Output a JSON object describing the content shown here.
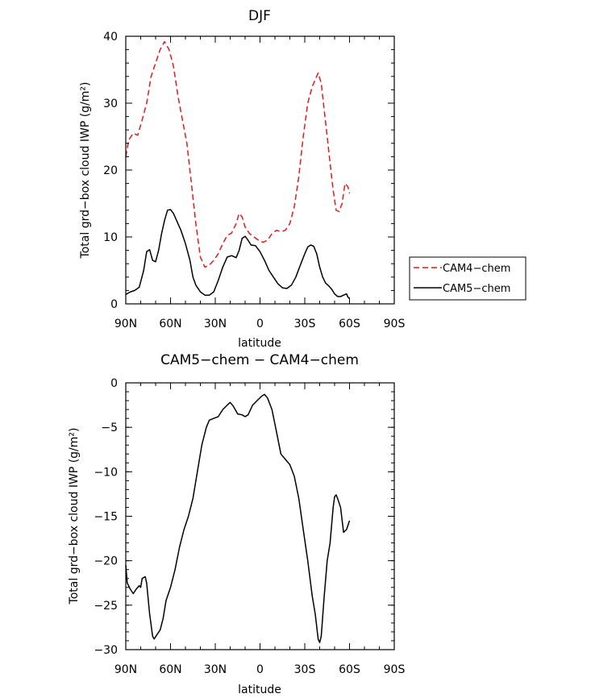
{
  "chart_data": [
    {
      "type": "line",
      "title": "DJF",
      "xlabel": "latitude",
      "ylabel": "Total grd−box cloud IWP (g/m²)",
      "xlim": [
        90,
        -90
      ],
      "ylim": [
        0,
        40
      ],
      "xticks": [
        90,
        60,
        30,
        0,
        -30,
        -60,
        -90
      ],
      "xtick_labels": [
        "90N",
        "60N",
        "30N",
        "0",
        "30S",
        "60S",
        "90S"
      ],
      "yticks": [
        0,
        10,
        20,
        30,
        40
      ],
      "ytick_labels": [
        "0",
        "10",
        "20",
        "30",
        "40"
      ],
      "legend_position": "right",
      "series": [
        {
          "name": "CAM4−chem",
          "color": "#e41a1c",
          "dash": "dashed",
          "points": [
            [
              90,
              22
            ],
            [
              88,
              24.5
            ],
            [
              85,
              25.5
            ],
            [
              82,
              25.2
            ],
            [
              79,
              27.5
            ],
            [
              76,
              30
            ],
            [
              73,
              34
            ],
            [
              70,
              36
            ],
            [
              67,
              38
            ],
            [
              64,
              39.2
            ],
            [
              61,
              38
            ],
            [
              58,
              35.5
            ],
            [
              55,
              31
            ],
            [
              52,
              27.5
            ],
            [
              49,
              24
            ],
            [
              46,
              18
            ],
            [
              43,
              12
            ],
            [
              40,
              7
            ],
            [
              37,
              5.5
            ],
            [
              34,
              5.8
            ],
            [
              31,
              6.5
            ],
            [
              28,
              7.5
            ],
            [
              25,
              9
            ],
            [
              22,
              10.2
            ],
            [
              19,
              10.6
            ],
            [
              16,
              12
            ],
            [
              14,
              13.5
            ],
            [
              12,
              13
            ],
            [
              10,
              11.5
            ],
            [
              7,
              10.5
            ],
            [
              4,
              10
            ],
            [
              1,
              9.5
            ],
            [
              -2,
              9.2
            ],
            [
              -5,
              9.5
            ],
            [
              -8,
              10.5
            ],
            [
              -11,
              11
            ],
            [
              -14,
              10.8
            ],
            [
              -17,
              11
            ],
            [
              -20,
              12
            ],
            [
              -23,
              14.5
            ],
            [
              -26,
              19
            ],
            [
              -29,
              25
            ],
            [
              -32,
              30
            ],
            [
              -35,
              32.5
            ],
            [
              -37,
              33.5
            ],
            [
              -39,
              34.5
            ],
            [
              -41,
              33
            ],
            [
              -43,
              29
            ],
            [
              -45,
              25
            ],
            [
              -47,
              21
            ],
            [
              -49,
              17
            ],
            [
              -51,
              14
            ],
            [
              -53,
              13.8
            ],
            [
              -55,
              15
            ],
            [
              -57,
              18
            ],
            [
              -59,
              17.5
            ],
            [
              -60,
              16.5
            ]
          ]
        },
        {
          "name": "CAM5−chem",
          "color": "#000000",
          "dash": "solid",
          "points": [
            [
              90,
              1.4
            ],
            [
              87,
              1.8
            ],
            [
              84,
              2
            ],
            [
              81,
              2.5
            ],
            [
              78,
              5
            ],
            [
              76,
              7.8
            ],
            [
              74,
              8.1
            ],
            [
              72,
              6.5
            ],
            [
              70,
              6.3
            ],
            [
              68,
              8
            ],
            [
              66,
              10.5
            ],
            [
              64,
              12.5
            ],
            [
              62,
              14
            ],
            [
              60,
              14.1
            ],
            [
              58,
              13.5
            ],
            [
              56,
              12.5
            ],
            [
              53,
              11
            ],
            [
              50,
              9
            ],
            [
              47,
              6.5
            ],
            [
              45,
              4
            ],
            [
              43,
              2.8
            ],
            [
              40,
              1.8
            ],
            [
              37,
              1.3
            ],
            [
              34,
              1.3
            ],
            [
              31,
              1.8
            ],
            [
              28,
              3.5
            ],
            [
              25,
              5.5
            ],
            [
              22,
              7
            ],
            [
              19,
              7.2
            ],
            [
              16,
              6.9
            ],
            [
              14,
              8
            ],
            [
              12,
              9.8
            ],
            [
              10,
              10.1
            ],
            [
              8,
              9.5
            ],
            [
              6,
              8.8
            ],
            [
              3,
              8.7
            ],
            [
              0,
              7.8
            ],
            [
              -3,
              6.5
            ],
            [
              -6,
              5
            ],
            [
              -9,
              4
            ],
            [
              -12,
              3
            ],
            [
              -15,
              2.4
            ],
            [
              -18,
              2.3
            ],
            [
              -21,
              2.8
            ],
            [
              -24,
              4
            ],
            [
              -27,
              5.8
            ],
            [
              -30,
              7.5
            ],
            [
              -32,
              8.5
            ],
            [
              -34,
              8.8
            ],
            [
              -36,
              8.6
            ],
            [
              -38,
              7.5
            ],
            [
              -40,
              5.5
            ],
            [
              -42,
              4
            ],
            [
              -44,
              3.1
            ],
            [
              -46,
              2.7
            ],
            [
              -48,
              2.2
            ],
            [
              -50,
              1.5
            ],
            [
              -52,
              1.1
            ],
            [
              -54,
              1.1
            ],
            [
              -56,
              1.3
            ],
            [
              -58,
              1.5
            ],
            [
              -59,
              1
            ],
            [
              -60,
              0.8
            ]
          ]
        }
      ]
    },
    {
      "type": "line",
      "title": "CAM5−chem − CAM4−chem",
      "xlabel": "latitude",
      "ylabel": "Total grd−box cloud IWP (g/m²)",
      "xlim": [
        90,
        -90
      ],
      "ylim": [
        -30,
        0
      ],
      "xticks": [
        90,
        60,
        30,
        0,
        -30,
        -60,
        -90
      ],
      "xtick_labels": [
        "90N",
        "60N",
        "30N",
        "0",
        "30S",
        "60S",
        "90S"
      ],
      "yticks": [
        0,
        -5,
        -10,
        -15,
        -20,
        -25,
        -30
      ],
      "ytick_labels": [
        "0",
        "−5",
        "−10",
        "−15",
        "−20",
        "−25",
        "−30"
      ],
      "series": [
        {
          "color": "#000000",
          "dash": "solid",
          "points": [
            [
              90,
              -20.5
            ],
            [
              89,
              -22.5
            ],
            [
              87,
              -23.2
            ],
            [
              85,
              -23.7
            ],
            [
              83,
              -23.2
            ],
            [
              81,
              -22.8
            ],
            [
              80,
              -23
            ],
            [
              79,
              -22
            ],
            [
              77,
              -21.8
            ],
            [
              76,
              -22.5
            ],
            [
              74,
              -26
            ],
            [
              72,
              -28.5
            ],
            [
              71,
              -28.8
            ],
            [
              69,
              -28.3
            ],
            [
              67,
              -27.8
            ],
            [
              65,
              -26.5
            ],
            [
              63,
              -24.5
            ],
            [
              60,
              -23
            ],
            [
              57,
              -21
            ],
            [
              54,
              -18.5
            ],
            [
              51,
              -16.5
            ],
            [
              48,
              -15
            ],
            [
              45,
              -13
            ],
            [
              42,
              -10
            ],
            [
              39,
              -7
            ],
            [
              36,
              -5
            ],
            [
              34,
              -4.2
            ],
            [
              31,
              -4
            ],
            [
              28,
              -3.8
            ],
            [
              25,
              -3
            ],
            [
              22,
              -2.5
            ],
            [
              20,
              -2.2
            ],
            [
              18,
              -2.6
            ],
            [
              15,
              -3.5
            ],
            [
              12,
              -3.6
            ],
            [
              10,
              -3.8
            ],
            [
              8,
              -3.6
            ],
            [
              5,
              -2.5
            ],
            [
              2,
              -2
            ],
            [
              -1,
              -1.5
            ],
            [
              -3,
              -1.3
            ],
            [
              -5,
              -1.7
            ],
            [
              -8,
              -3
            ],
            [
              -11,
              -5.5
            ],
            [
              -14,
              -8
            ],
            [
              -17,
              -8.6
            ],
            [
              -20,
              -9.2
            ],
            [
              -23,
              -10.5
            ],
            [
              -26,
              -13
            ],
            [
              -29,
              -16.5
            ],
            [
              -32,
              -20
            ],
            [
              -35,
              -24
            ],
            [
              -37,
              -26
            ],
            [
              -39,
              -28.8
            ],
            [
              -40,
              -29.2
            ],
            [
              -41,
              -28.5
            ],
            [
              -43,
              -24
            ],
            [
              -45,
              -20
            ],
            [
              -47,
              -18
            ],
            [
              -49,
              -14
            ],
            [
              -50,
              -12.8
            ],
            [
              -51,
              -12.6
            ],
            [
              -52,
              -13
            ],
            [
              -54,
              -14
            ],
            [
              -56,
              -16.8
            ],
            [
              -58,
              -16.5
            ],
            [
              -60,
              -15.5
            ]
          ]
        }
      ]
    }
  ]
}
